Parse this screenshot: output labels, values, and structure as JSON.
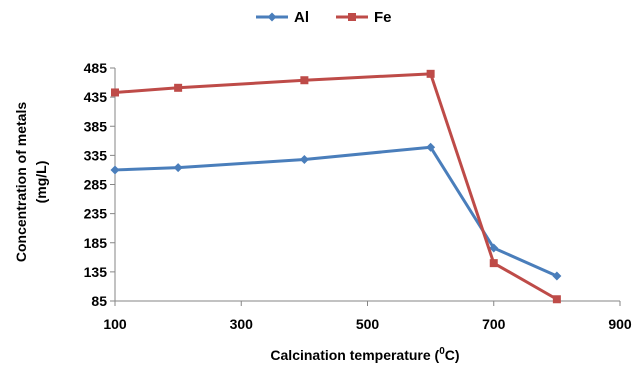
{
  "chart_data": {
    "type": "line",
    "xlabel": "Calcination temperature (",
    "xlabel_sup": "0",
    "xlabel_unit": "C)",
    "ylabel_line1": "Concentration of metals",
    "ylabel_line2": "(mg/L)",
    "xlim": [
      100,
      900
    ],
    "ylim": [
      85,
      485
    ],
    "x_ticks": [
      100,
      300,
      500,
      700,
      900
    ],
    "y_ticks": [
      85,
      135,
      185,
      235,
      285,
      335,
      385,
      435,
      485
    ],
    "grid": false,
    "legend_position": "top-center",
    "series": [
      {
        "name": "Al",
        "color": "#4a7ebb",
        "marker": "diamond",
        "x": [
          100,
          200,
          400,
          600,
          700,
          800
        ],
        "y": [
          310,
          314,
          328,
          349,
          176,
          128
        ]
      },
      {
        "name": "Fe",
        "color": "#be4b48",
        "marker": "square",
        "x": [
          100,
          200,
          400,
          600,
          700,
          800
        ],
        "y": [
          443,
          451,
          464,
          475,
          150,
          88
        ]
      }
    ]
  }
}
